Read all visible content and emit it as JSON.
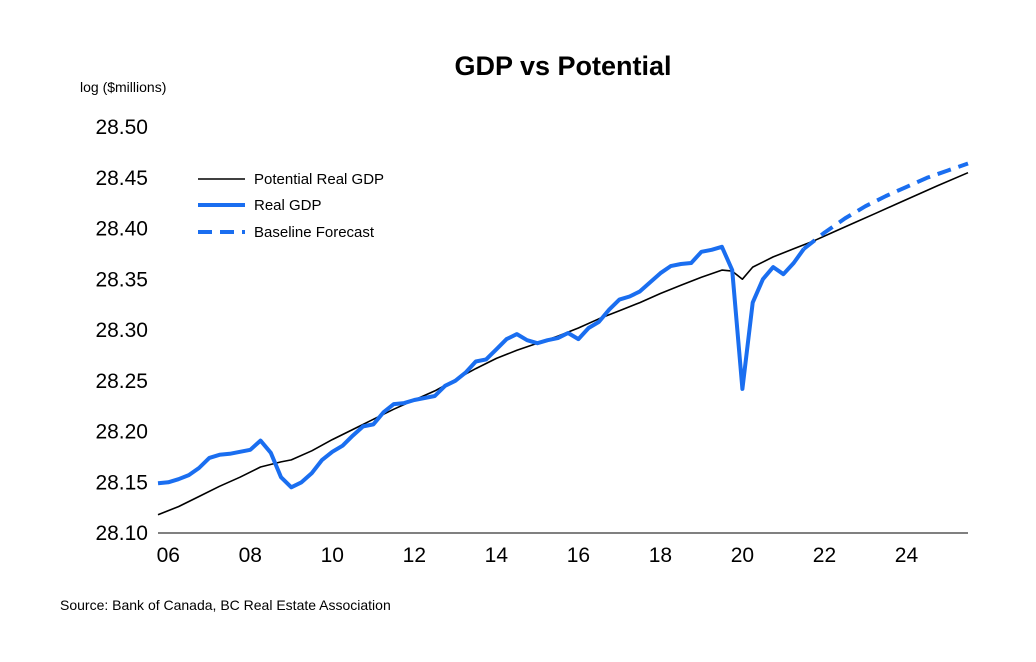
{
  "chart_data": {
    "type": "line",
    "title": "GDP vs Potential",
    "ylabel": "log ($millions)",
    "ylim": [
      28.1,
      28.5
    ],
    "y_ticks": [
      "28.50",
      "28.45",
      "28.40",
      "28.35",
      "28.30",
      "28.25",
      "28.20",
      "28.15",
      "28.10"
    ],
    "x_range": [
      2005.75,
      2025.5
    ],
    "x_ticks": [
      {
        "year": 2006,
        "label": "06"
      },
      {
        "year": 2008,
        "label": "08"
      },
      {
        "year": 2010,
        "label": "10"
      },
      {
        "year": 2012,
        "label": "12"
      },
      {
        "year": 2014,
        "label": "14"
      },
      {
        "year": 2016,
        "label": "16"
      },
      {
        "year": 2018,
        "label": "18"
      },
      {
        "year": 2020,
        "label": "20"
      },
      {
        "year": 2022,
        "label": "22"
      },
      {
        "year": 2024,
        "label": "24"
      }
    ],
    "grid": false,
    "legend_position": "top-left",
    "source": "Source: Bank of Canada, BC Real Estate Association",
    "series": [
      {
        "name": "Potential Real GDP",
        "color": "#000000",
        "style": "solid-thin",
        "points": [
          [
            2005.75,
            28.118
          ],
          [
            2006.25,
            28.126
          ],
          [
            2006.75,
            28.136
          ],
          [
            2007.25,
            28.146
          ],
          [
            2007.75,
            28.155
          ],
          [
            2008.25,
            28.165
          ],
          [
            2008.75,
            28.17
          ],
          [
            2009.0,
            28.172
          ],
          [
            2009.5,
            28.181
          ],
          [
            2010.0,
            28.192
          ],
          [
            2010.5,
            28.202
          ],
          [
            2011.0,
            28.212
          ],
          [
            2011.5,
            28.222
          ],
          [
            2012.0,
            28.231
          ],
          [
            2012.5,
            28.24
          ],
          [
            2013.0,
            28.251
          ],
          [
            2013.5,
            28.262
          ],
          [
            2014.0,
            28.272
          ],
          [
            2014.5,
            28.28
          ],
          [
            2015.0,
            28.287
          ],
          [
            2015.5,
            28.294
          ],
          [
            2016.0,
            28.302
          ],
          [
            2016.5,
            28.311
          ],
          [
            2017.0,
            28.319
          ],
          [
            2017.5,
            28.327
          ],
          [
            2018.0,
            28.336
          ],
          [
            2018.5,
            28.344
          ],
          [
            2019.0,
            28.352
          ],
          [
            2019.5,
            28.359
          ],
          [
            2019.75,
            28.358
          ],
          [
            2020.0,
            28.35
          ],
          [
            2020.25,
            28.362
          ],
          [
            2020.75,
            28.372
          ],
          [
            2021.25,
            28.38
          ],
          [
            2021.75,
            28.388
          ],
          [
            2022.25,
            28.397
          ],
          [
            2022.75,
            28.406
          ],
          [
            2023.25,
            28.415
          ],
          [
            2023.75,
            28.424
          ],
          [
            2024.25,
            28.433
          ],
          [
            2024.75,
            28.442
          ],
          [
            2025.5,
            28.455
          ]
        ]
      },
      {
        "name": "Real GDP",
        "color": "#1a6ef0",
        "style": "solid-thick",
        "points": [
          [
            2005.75,
            28.149
          ],
          [
            2006.0,
            28.15
          ],
          [
            2006.25,
            28.153
          ],
          [
            2006.5,
            28.157
          ],
          [
            2006.75,
            28.164
          ],
          [
            2007.0,
            28.174
          ],
          [
            2007.25,
            28.177
          ],
          [
            2007.5,
            28.178
          ],
          [
            2007.75,
            28.18
          ],
          [
            2008.0,
            28.182
          ],
          [
            2008.25,
            28.191
          ],
          [
            2008.5,
            28.179
          ],
          [
            2008.75,
            28.155
          ],
          [
            2009.0,
            28.145
          ],
          [
            2009.25,
            28.15
          ],
          [
            2009.5,
            28.159
          ],
          [
            2009.75,
            28.172
          ],
          [
            2010.0,
            28.18
          ],
          [
            2010.25,
            28.186
          ],
          [
            2010.5,
            28.196
          ],
          [
            2010.75,
            28.205
          ],
          [
            2011.0,
            28.207
          ],
          [
            2011.25,
            28.219
          ],
          [
            2011.5,
            28.227
          ],
          [
            2011.75,
            28.228
          ],
          [
            2012.0,
            28.231
          ],
          [
            2012.25,
            28.233
          ],
          [
            2012.5,
            28.235
          ],
          [
            2012.75,
            28.245
          ],
          [
            2013.0,
            28.25
          ],
          [
            2013.25,
            28.258
          ],
          [
            2013.5,
            28.269
          ],
          [
            2013.75,
            28.271
          ],
          [
            2014.0,
            28.281
          ],
          [
            2014.25,
            28.291
          ],
          [
            2014.5,
            28.296
          ],
          [
            2014.75,
            28.29
          ],
          [
            2015.0,
            28.287
          ],
          [
            2015.25,
            28.29
          ],
          [
            2015.5,
            28.292
          ],
          [
            2015.75,
            28.297
          ],
          [
            2016.0,
            28.291
          ],
          [
            2016.25,
            28.302
          ],
          [
            2016.5,
            28.308
          ],
          [
            2016.75,
            28.32
          ],
          [
            2017.0,
            28.33
          ],
          [
            2017.25,
            28.333
          ],
          [
            2017.5,
            28.338
          ],
          [
            2017.75,
            28.347
          ],
          [
            2018.0,
            28.356
          ],
          [
            2018.25,
            28.363
          ],
          [
            2018.5,
            28.365
          ],
          [
            2018.75,
            28.366
          ],
          [
            2019.0,
            28.377
          ],
          [
            2019.25,
            28.379
          ],
          [
            2019.5,
            28.382
          ],
          [
            2019.75,
            28.359
          ],
          [
            2020.0,
            28.242
          ],
          [
            2020.25,
            28.327
          ],
          [
            2020.5,
            28.35
          ],
          [
            2020.75,
            28.362
          ],
          [
            2021.0,
            28.355
          ],
          [
            2021.25,
            28.366
          ],
          [
            2021.5,
            28.38
          ]
        ]
      },
      {
        "name": "Baseline Forecast",
        "color": "#1a6ef0",
        "style": "dashed-thick",
        "points": [
          [
            2021.5,
            28.38
          ],
          [
            2022.0,
            28.396
          ],
          [
            2022.5,
            28.41
          ],
          [
            2023.0,
            28.422
          ],
          [
            2023.5,
            28.432
          ],
          [
            2024.0,
            28.441
          ],
          [
            2024.5,
            28.45
          ],
          [
            2025.0,
            28.457
          ],
          [
            2025.5,
            28.464
          ]
        ]
      }
    ]
  }
}
